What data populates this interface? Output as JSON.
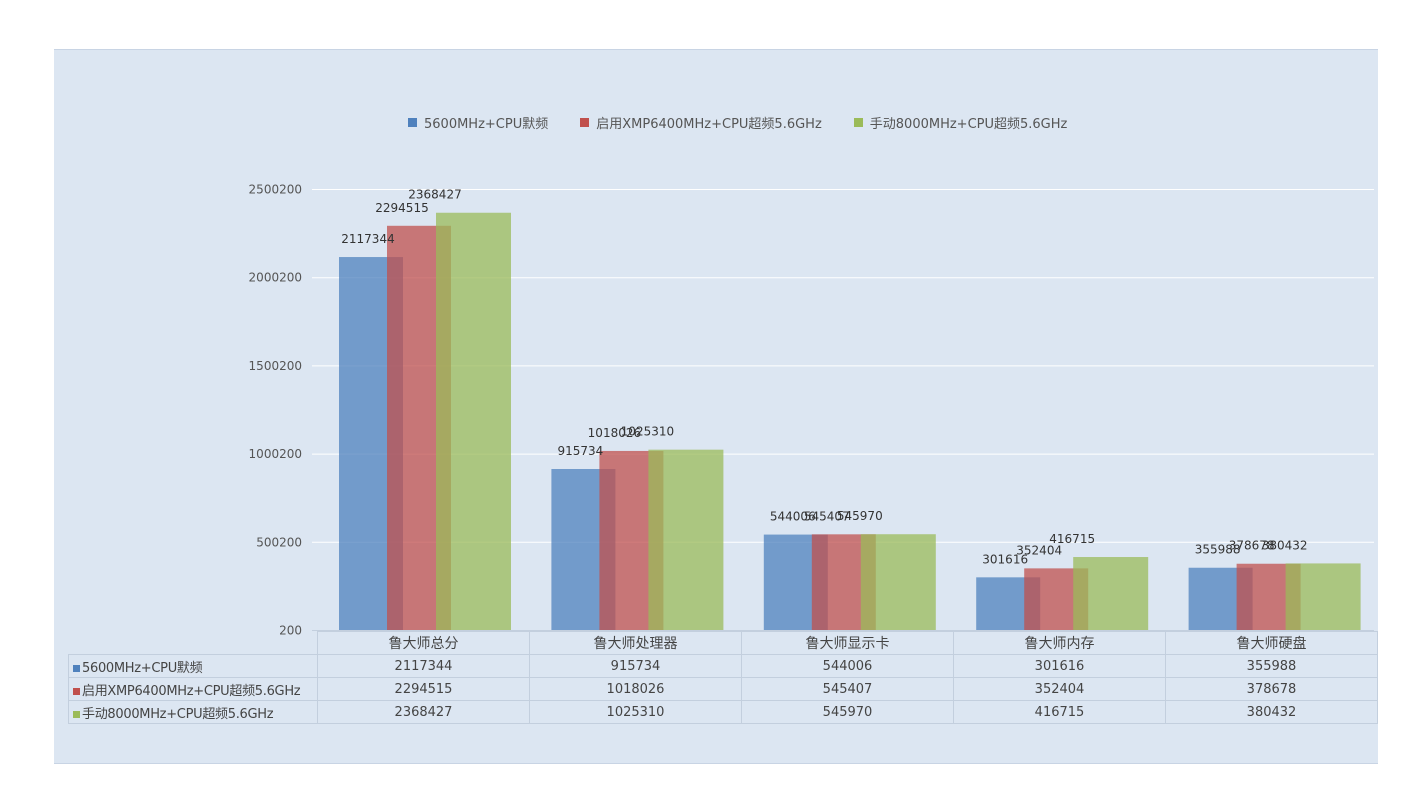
{
  "colors": {
    "series1": "#4f81bd",
    "series2": "#c0504d",
    "series3": "#9bbb59"
  },
  "chart_data": {
    "type": "bar",
    "title": "",
    "xlabel": "",
    "ylabel": "",
    "categories": [
      "鲁大师总分",
      "鲁大师处理器",
      "鲁大师显示卡",
      "鲁大师内存",
      "鲁大师硬盘"
    ],
    "series": [
      {
        "name": "5600MHz+CPU默频",
        "values": [
          2117344,
          915734,
          544006,
          301616,
          355988
        ]
      },
      {
        "name": "启用XMP6400MHz+CPU超频5.6GHz",
        "values": [
          2294515,
          1018026,
          545407,
          352404,
          378678
        ]
      },
      {
        "name": "手动8000MHz+CPU超频5.6GHz",
        "values": [
          2368427,
          1025310,
          545970,
          416715,
          380432
        ]
      }
    ],
    "yticks": [
      "200",
      "500200",
      "1000200",
      "1500200",
      "2000200",
      "2500200"
    ],
    "ylim": [
      200,
      2500200
    ],
    "grid": true,
    "legend_position": "top",
    "data_table": true
  }
}
